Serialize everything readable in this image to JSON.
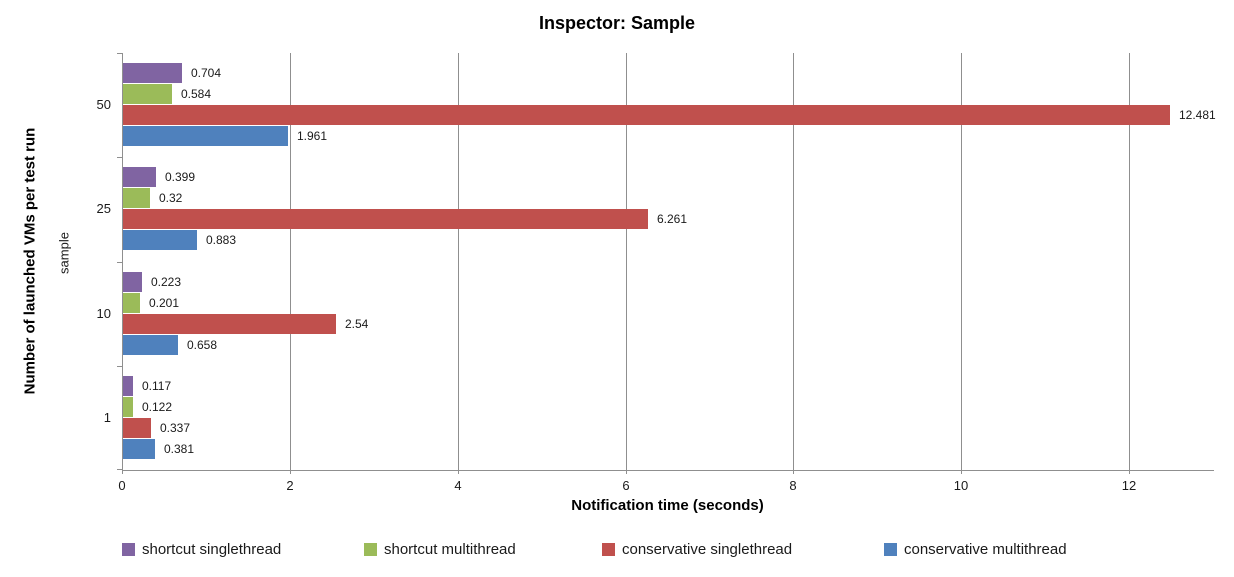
{
  "title": "Inspector: Sample",
  "chart_data": {
    "type": "bar",
    "orientation": "horizontal",
    "title": "Inspector: Sample",
    "xlabel": "Notification time (seconds)",
    "ylabel": "Number of launched VMs per test run",
    "ylabel_secondary": "sample",
    "categories": [
      "50",
      "25",
      "10",
      "1"
    ],
    "series": [
      {
        "name": "shortcut singlethread",
        "color": "#8064A2",
        "values": [
          0.704,
          0.399,
          0.223,
          0.117
        ],
        "labels": [
          "0.704",
          "0.399",
          "0.223",
          "0.117"
        ]
      },
      {
        "name": "shortcut multithread",
        "color": "#9BBB59",
        "values": [
          0.584,
          0.32,
          0.201,
          0.122
        ],
        "labels": [
          "0.584",
          "0.32",
          "0.201",
          "0.122"
        ]
      },
      {
        "name": "conservative singlethread",
        "color": "#C0504D",
        "values": [
          12.481,
          6.261,
          2.54,
          0.337
        ],
        "labels": [
          "12.481",
          "6.261",
          "2.54",
          "0.337"
        ]
      },
      {
        "name": "conservative multithread",
        "color": "#4F81BD",
        "values": [
          1.961,
          0.883,
          0.658,
          0.381
        ],
        "labels": [
          "1.961",
          "0.883",
          "0.658",
          "0.381"
        ]
      }
    ],
    "xlim": [
      0,
      13
    ],
    "xticks": [
      0,
      2,
      4,
      6,
      8,
      10,
      12
    ],
    "grid": true,
    "legend_position": "bottom",
    "value_labels": true,
    "colors": {
      "gridline": "#8F8F8F",
      "axis": "#8F8F8F",
      "text": "#1A1A1A"
    }
  }
}
